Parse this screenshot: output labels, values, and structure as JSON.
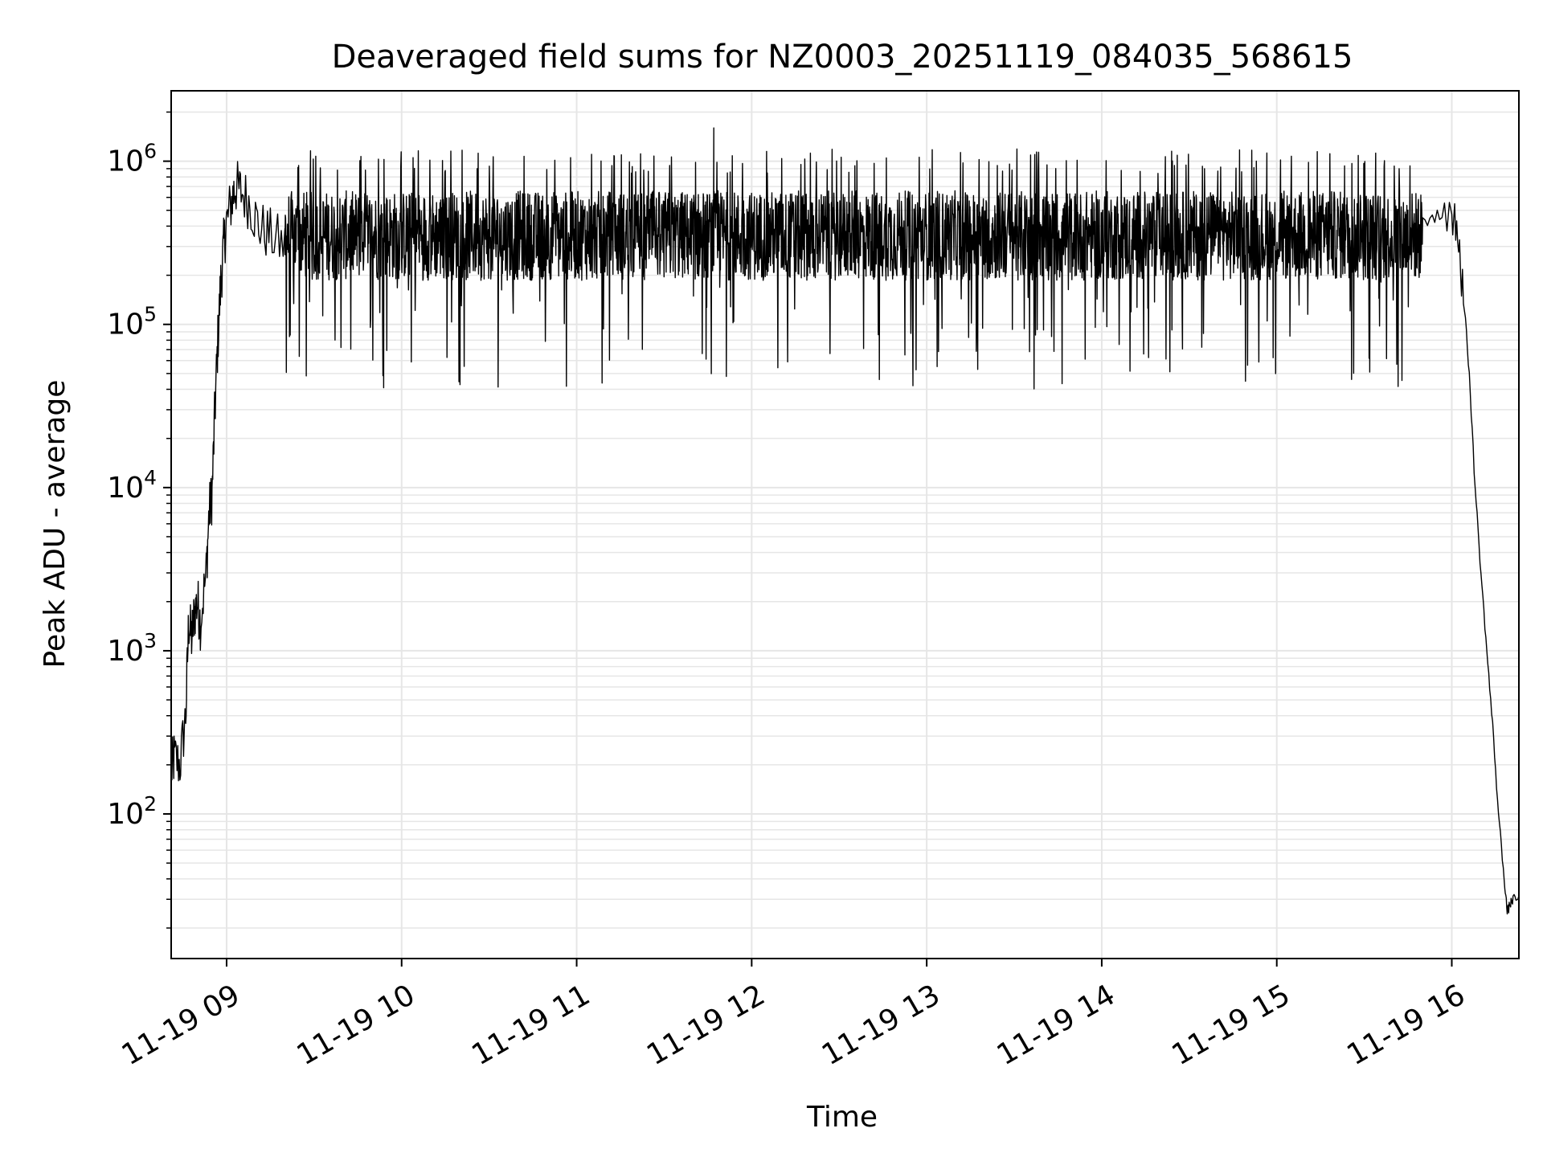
{
  "chart_data": {
    "type": "line",
    "title": "Deaveraged field sums for NZ0003_20251119_084035_568615",
    "xlabel": "Time",
    "ylabel": "Peak ADU - average",
    "yscale": "log",
    "ylim": [
      13,
      2700000
    ],
    "xlim": [
      "2025-11-19 08:41",
      "2025-11-19 16:23"
    ],
    "grid": true,
    "line_color": "#000000",
    "grid_color": "#e6e6e6",
    "x_ticks": [
      {
        "t": "2025-11-19 09:00",
        "label": "11-19 09"
      },
      {
        "t": "2025-11-19 10:00",
        "label": "11-19 10"
      },
      {
        "t": "2025-11-19 11:00",
        "label": "11-19 11"
      },
      {
        "t": "2025-11-19 12:00",
        "label": "11-19 12"
      },
      {
        "t": "2025-11-19 13:00",
        "label": "11-19 13"
      },
      {
        "t": "2025-11-19 14:00",
        "label": "11-19 14"
      },
      {
        "t": "2025-11-19 15:00",
        "label": "11-19 15"
      },
      {
        "t": "2025-11-19 16:00",
        "label": "11-19 16"
      }
    ],
    "y_ticks": [
      {
        "value": 100,
        "base": "10",
        "exp": "2"
      },
      {
        "value": 1000,
        "base": "10",
        "exp": "3"
      },
      {
        "value": 10000,
        "base": "10",
        "exp": "4"
      },
      {
        "value": 100000,
        "base": "10",
        "exp": "5"
      },
      {
        "value": 1000000,
        "base": "10",
        "exp": "6"
      }
    ],
    "series": [
      {
        "x": [
          "2025-11-19 08:41",
          "2025-11-19 08:42",
          "2025-11-19 08:44",
          "2025-11-19 08:46",
          "2025-11-19 08:47",
          "2025-11-19 08:48",
          "2025-11-19 08:49",
          "2025-11-19 08:50",
          "2025-11-19 08:51",
          "2025-11-19 08:53",
          "2025-11-19 08:54",
          "2025-11-19 08:55",
          "2025-11-19 08:56",
          "2025-11-19 08:57",
          "2025-11-19 08:58",
          "2025-11-19 08:59",
          "2025-11-19 09:00",
          "2025-11-19 09:02",
          "2025-11-19 09:03",
          "2025-11-19 09:05",
          "2025-11-19 09:08",
          "2025-11-19 09:11",
          "2025-11-19 09:15",
          "2025-11-19 09:20",
          "2025-11-19 15:50",
          "2025-11-19 15:55",
          "2025-11-19 16:00",
          "2025-11-19 16:02",
          "2025-11-19 16:04",
          "2025-11-19 16:06",
          "2025-11-19 16:08",
          "2025-11-19 16:10",
          "2025-11-19 16:12",
          "2025-11-19 16:14",
          "2025-11-19 16:16",
          "2025-11-19 16:18",
          "2025-11-19 16:19",
          "2025-11-19 16:20",
          "2025-11-19 16:21",
          "2025-11-19 16:23"
        ],
        "y": [
          180,
          220,
          200,
          400,
          1500,
          1200,
          1700,
          2000,
          1500,
          3000,
          7000,
          9000,
          30000,
          80000,
          180000,
          300000,
          420000,
          600000,
          700000,
          650000,
          550000,
          400000,
          350000,
          300000,
          450000,
          520000,
          500000,
          400000,
          150000,
          50000,
          10000,
          3000,
          1000,
          350,
          100,
          40,
          25,
          28,
          30,
          30
        ]
      }
    ],
    "noise_band": {
      "start": "2025-11-19 09:20",
      "end": "2025-11-19 15:50",
      "median": 350000,
      "low": 40000,
      "high": 1000000,
      "spike_high": 1600000
    }
  }
}
